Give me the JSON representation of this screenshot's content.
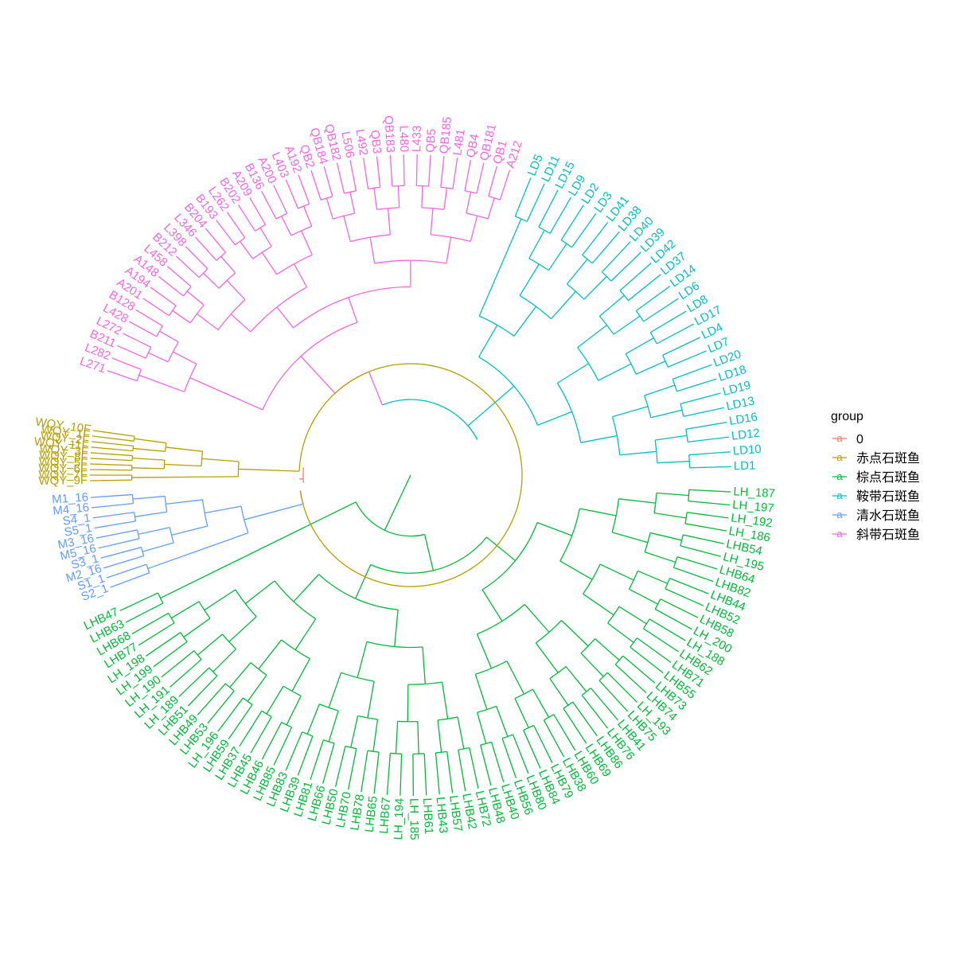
{
  "legend": {
    "title": "group",
    "key_glyph": "a",
    "groups": [
      {
        "name": "0",
        "color": "#F8766D"
      },
      {
        "name": "赤点石斑鱼",
        "color": "#B79F00"
      },
      {
        "name": "棕点石斑鱼",
        "color": "#00BA38"
      },
      {
        "name": "鞍带石斑鱼",
        "color": "#00BFC4"
      },
      {
        "name": "清水石斑鱼",
        "color": "#619CFF"
      },
      {
        "name": "斜带石斑鱼",
        "color": "#F564E3"
      }
    ]
  },
  "clades": [
    {
      "group": "鞍带石斑鱼",
      "tips": [
        "LD1",
        "LD10",
        "LD12",
        "LD16",
        "LD13",
        "LD19",
        "LD18",
        "LD20",
        "LD7",
        "LD4",
        "LD17",
        "LD8",
        "LD6",
        "LD14",
        "LD37",
        "LD42",
        "LD39",
        "LD40",
        "LD38",
        "LD41",
        "LD3",
        "LD2",
        "LD9",
        "LD15",
        "LD11",
        "LD5"
      ]
    },
    {
      "group": "斜带石斑鱼",
      "tips": [
        "A212",
        "QB1",
        "QB181",
        "QB4",
        "L481",
        "QB185",
        "QB5",
        "L433",
        "L480",
        "QB183",
        "QB3",
        "L492",
        "L506",
        "QB182",
        "QB184",
        "QB2",
        "A192",
        "L403",
        "A200",
        "B136",
        "A209",
        "B202",
        "L262",
        "B193",
        "B204",
        "L346",
        "L398",
        "B212",
        "L458",
        "A148",
        "A194",
        "A201",
        "B128",
        "L428",
        "L272",
        "B211",
        "L282",
        "L271"
      ]
    },
    {
      "group": "赤点石斑鱼",
      "tips": [
        "WQY_10F",
        "WQY_1F",
        "WQY_2F",
        "WQY_11F",
        "WQY_3F",
        "WQY_8F",
        "WQY_5F",
        "WQY_6F",
        "WQY_7F",
        "WQY_9F"
      ]
    },
    {
      "group": "清水石斑鱼",
      "tips": [
        "M1_16",
        "M4_16",
        "S4_1",
        "S5_1",
        "M3_16",
        "M5_16",
        "S3_1",
        "M2_16",
        "S1_1",
        "S2_1"
      ]
    },
    {
      "group": "棕点石斑鱼",
      "tips": [
        "LH_187",
        "LH_197",
        "LH_192",
        "LH_186",
        "LHB54",
        "LH_195",
        "LHB64",
        "LHB82",
        "LHB44",
        "LHB52",
        "LHB58",
        "LH_200",
        "LH_188",
        "LHB62",
        "LHB71",
        "LHB55",
        "LHB73",
        "LHB74",
        "LH_193",
        "LHB75",
        "LHB41",
        "LHB76",
        "LHB86",
        "LHB69",
        "LHB60",
        "LHB38",
        "LHB79",
        "LHB84",
        "LHB80",
        "LHB56",
        "LHB40",
        "LHB48",
        "LHB72",
        "LHB42",
        "LHB57",
        "LHB43",
        "LHB61",
        "LH_185",
        "LH_194",
        "LHB67",
        "LHB65",
        "LHB78",
        "LHB70",
        "LHB50",
        "LHB66",
        "LHB81",
        "LHB39",
        "LHB83",
        "LHB85",
        "LHB46",
        "LHB45",
        "LHB37",
        "LHB59",
        "LH_196",
        "LHB53",
        "LHB49",
        "LHB51",
        "LH_189",
        "LH_191",
        "LH_190",
        "LH_199",
        "LH_198",
        "LHB77",
        "LHB68",
        "LHB63",
        "LHB47"
      ]
    }
  ]
}
